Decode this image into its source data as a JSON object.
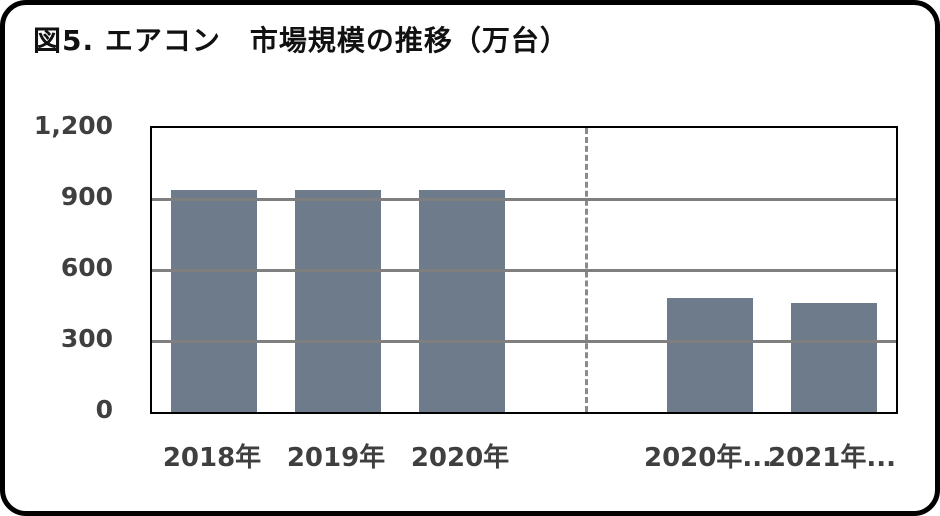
{
  "chart_data": {
    "type": "bar",
    "title": "図5. エアコン　市場規模の推移（万台）",
    "categories": [
      "2018年",
      "2019年",
      "2020年",
      "2020年...",
      "2021年..."
    ],
    "values": [
      940,
      940,
      940,
      480,
      460
    ],
    "xlabel": "",
    "ylabel": "",
    "ylim": [
      0,
      1200
    ],
    "yticks": [
      0,
      300,
      600,
      900,
      1200
    ],
    "ytick_labels": [
      "0",
      "300",
      "600",
      "900",
      "1,200"
    ],
    "grid": true,
    "legend": "none",
    "divider_after_index": 2,
    "bar_color": "#6e7b8b",
    "gridline_color": "#7f7f7f",
    "divider_color": "#8a8a8a",
    "plot_border_color": "#000000"
  }
}
